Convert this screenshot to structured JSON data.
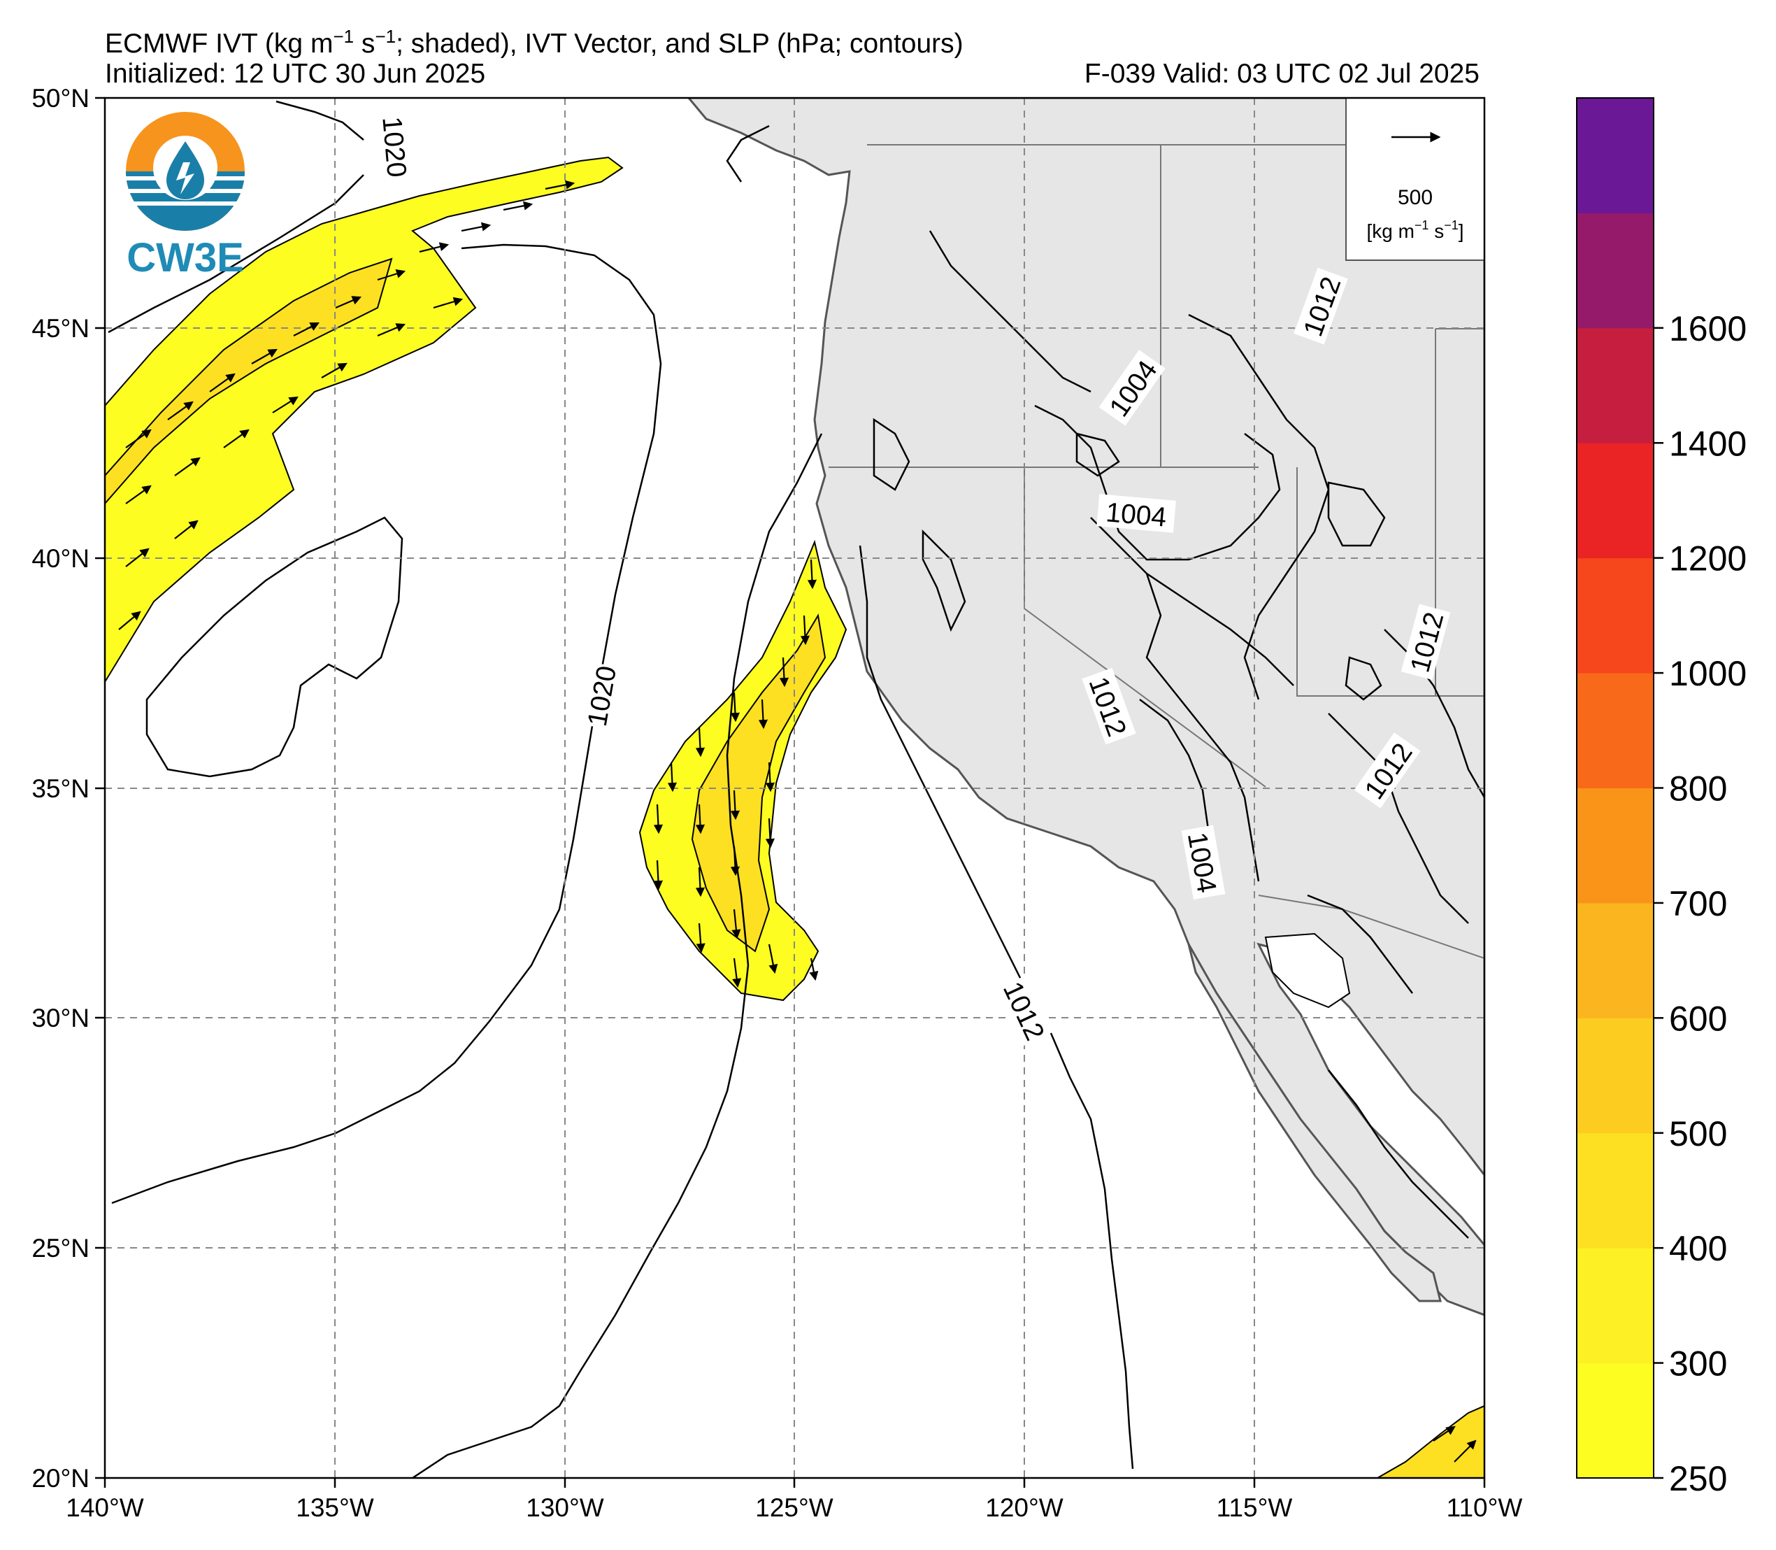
{
  "header": {
    "title_prefix": "ECMWF IVT (kg m",
    "title_sup1": "−1",
    "title_mid": " s",
    "title_sup2": "−1",
    "title_suffix": "; shaded), IVT Vector, and SLP (hPa; contours)",
    "initialized": "Initialized: 12 UTC 30 Jun 2025",
    "valid": "F-039  Valid: 03 UTC 02 Jul 2025"
  },
  "logo": {
    "text": "CW3E",
    "icon": "water-drop-logo-icon"
  },
  "map": {
    "lat_labels": [
      "50°N",
      "45°N",
      "40°N",
      "35°N",
      "30°N",
      "25°N",
      "20°N"
    ],
    "lon_labels": [
      "140°W",
      "135°W",
      "130°W",
      "125°W",
      "120°W",
      "115°W",
      "110°W"
    ],
    "contour_labels": [
      "1020",
      "1020",
      "1012",
      "1004",
      "1004",
      "1012",
      "1012",
      "1012",
      "1004",
      "1012"
    ],
    "land_color": "#e6e6e6",
    "ocean_color": "#ffffff"
  },
  "vector_key": {
    "value": "500",
    "unit_prefix": "[kg m",
    "unit_sup1": "−1",
    "unit_mid": " s",
    "unit_sup2": "−1",
    "unit_suffix": "]"
  },
  "colorbar": {
    "ticks": [
      "250",
      "300",
      "400",
      "500",
      "600",
      "700",
      "800",
      "1000",
      "1200",
      "1400",
      "1600"
    ],
    "colors": [
      "#fdfd22",
      "#fdf024",
      "#fde022",
      "#fccd20",
      "#fbb51e",
      "#f99419",
      "#f86a19",
      "#f6461c",
      "#ea2424",
      "#c51e3e",
      "#961a6a",
      "#6b1896"
    ]
  }
}
